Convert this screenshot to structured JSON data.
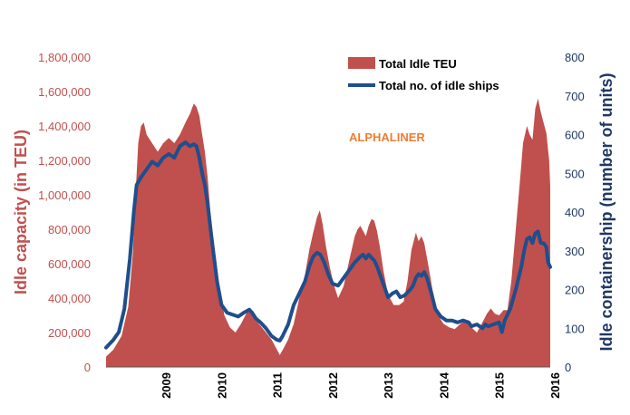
{
  "chart_data": {
    "type": "area+line",
    "ylabel_left": "Idle capacity (in TEU)",
    "ylabel_right": "Idle containership (number of units)",
    "annotation": "ALPHALINER",
    "legend_position": "top-right",
    "y_left": {
      "min": 0,
      "max": 1800000,
      "tick_labels": [
        "0",
        "200,000",
        "400,000",
        "600,000",
        "800,000",
        "1,000,000",
        "1,200,000",
        "1,400,000",
        "1,600,000",
        "1,800,000"
      ]
    },
    "y_right": {
      "min": 0,
      "max": 800,
      "tick_labels": [
        "0",
        "100",
        "200",
        "300",
        "400",
        "500",
        "600",
        "700",
        "800"
      ]
    },
    "x": {
      "min": 2008.42,
      "max": 2016.42,
      "tick_labels": [
        "2009",
        "2010",
        "2011",
        "2012",
        "2013",
        "2014",
        "2015",
        "2016"
      ]
    },
    "series": [
      {
        "name": "Total Idle TEU",
        "kind": "area",
        "axis": "left",
        "color": "#C0504D",
        "points": [
          [
            2008.42,
            60000
          ],
          [
            2008.55,
            100000
          ],
          [
            2008.7,
            180000
          ],
          [
            2008.82,
            350000
          ],
          [
            2008.9,
            650000
          ],
          [
            2008.95,
            1000000
          ],
          [
            2009.0,
            1300000
          ],
          [
            2009.05,
            1400000
          ],
          [
            2009.1,
            1420000
          ],
          [
            2009.15,
            1350000
          ],
          [
            2009.25,
            1300000
          ],
          [
            2009.35,
            1250000
          ],
          [
            2009.45,
            1300000
          ],
          [
            2009.55,
            1330000
          ],
          [
            2009.65,
            1300000
          ],
          [
            2009.75,
            1350000
          ],
          [
            2009.85,
            1420000
          ],
          [
            2009.93,
            1470000
          ],
          [
            2010.0,
            1530000
          ],
          [
            2010.05,
            1510000
          ],
          [
            2010.1,
            1460000
          ],
          [
            2010.15,
            1350000
          ],
          [
            2010.2,
            1250000
          ],
          [
            2010.25,
            1100000
          ],
          [
            2010.3,
            900000
          ],
          [
            2010.35,
            750000
          ],
          [
            2010.45,
            500000
          ],
          [
            2010.55,
            300000
          ],
          [
            2010.65,
            230000
          ],
          [
            2010.75,
            200000
          ],
          [
            2010.85,
            250000
          ],
          [
            2010.93,
            300000
          ],
          [
            2011.0,
            340000
          ],
          [
            2011.05,
            320000
          ],
          [
            2011.12,
            270000
          ],
          [
            2011.2,
            240000
          ],
          [
            2011.3,
            200000
          ],
          [
            2011.4,
            160000
          ],
          [
            2011.5,
            100000
          ],
          [
            2011.55,
            70000
          ],
          [
            2011.62,
            110000
          ],
          [
            2011.7,
            160000
          ],
          [
            2011.8,
            250000
          ],
          [
            2011.9,
            400000
          ],
          [
            2012.0,
            530000
          ],
          [
            2012.08,
            680000
          ],
          [
            2012.15,
            780000
          ],
          [
            2012.22,
            870000
          ],
          [
            2012.27,
            910000
          ],
          [
            2012.32,
            830000
          ],
          [
            2012.38,
            700000
          ],
          [
            2012.45,
            580000
          ],
          [
            2012.52,
            480000
          ],
          [
            2012.6,
            400000
          ],
          [
            2012.7,
            470000
          ],
          [
            2012.8,
            620000
          ],
          [
            2012.9,
            760000
          ],
          [
            2012.95,
            800000
          ],
          [
            2013.0,
            820000
          ],
          [
            2013.05,
            790000
          ],
          [
            2013.1,
            760000
          ],
          [
            2013.15,
            820000
          ],
          [
            2013.2,
            860000
          ],
          [
            2013.25,
            850000
          ],
          [
            2013.3,
            790000
          ],
          [
            2013.35,
            700000
          ],
          [
            2013.42,
            550000
          ],
          [
            2013.5,
            420000
          ],
          [
            2013.6,
            360000
          ],
          [
            2013.7,
            360000
          ],
          [
            2013.78,
            380000
          ],
          [
            2013.85,
            500000
          ],
          [
            2013.92,
            680000
          ],
          [
            2014.0,
            780000
          ],
          [
            2014.05,
            730000
          ],
          [
            2014.1,
            760000
          ],
          [
            2014.15,
            720000
          ],
          [
            2014.22,
            600000
          ],
          [
            2014.3,
            450000
          ],
          [
            2014.4,
            300000
          ],
          [
            2014.5,
            250000
          ],
          [
            2014.6,
            230000
          ],
          [
            2014.7,
            220000
          ],
          [
            2014.8,
            250000
          ],
          [
            2014.9,
            270000
          ],
          [
            2015.0,
            230000
          ],
          [
            2015.1,
            200000
          ],
          [
            2015.2,
            260000
          ],
          [
            2015.28,
            310000
          ],
          [
            2015.35,
            340000
          ],
          [
            2015.42,
            310000
          ],
          [
            2015.5,
            300000
          ],
          [
            2015.58,
            330000
          ],
          [
            2015.65,
            330000
          ],
          [
            2015.72,
            500000
          ],
          [
            2015.8,
            800000
          ],
          [
            2015.88,
            1100000
          ],
          [
            2015.93,
            1300000
          ],
          [
            2016.0,
            1400000
          ],
          [
            2016.05,
            1350000
          ],
          [
            2016.1,
            1320000
          ],
          [
            2016.15,
            1500000
          ],
          [
            2016.2,
            1560000
          ],
          [
            2016.25,
            1480000
          ],
          [
            2016.3,
            1420000
          ],
          [
            2016.35,
            1360000
          ],
          [
            2016.4,
            1200000
          ],
          [
            2016.42,
            1050000
          ]
        ]
      },
      {
        "name": "Total no. of idle ships",
        "kind": "line",
        "axis": "right",
        "color": "#1F4E8C",
        "points": [
          [
            2008.42,
            50
          ],
          [
            2008.55,
            70
          ],
          [
            2008.65,
            90
          ],
          [
            2008.75,
            150
          ],
          [
            2008.85,
            280
          ],
          [
            2008.92,
            400
          ],
          [
            2008.97,
            470
          ],
          [
            2009.05,
            490
          ],
          [
            2009.15,
            510
          ],
          [
            2009.25,
            530
          ],
          [
            2009.35,
            520
          ],
          [
            2009.45,
            540
          ],
          [
            2009.55,
            550
          ],
          [
            2009.65,
            540
          ],
          [
            2009.75,
            570
          ],
          [
            2009.85,
            580
          ],
          [
            2009.93,
            570
          ],
          [
            2010.0,
            575
          ],
          [
            2010.05,
            570
          ],
          [
            2010.1,
            540
          ],
          [
            2010.15,
            500
          ],
          [
            2010.2,
            470
          ],
          [
            2010.25,
            420
          ],
          [
            2010.3,
            360
          ],
          [
            2010.35,
            300
          ],
          [
            2010.42,
            220
          ],
          [
            2010.5,
            160
          ],
          [
            2010.6,
            140
          ],
          [
            2010.7,
            135
          ],
          [
            2010.8,
            130
          ],
          [
            2010.9,
            140
          ],
          [
            2011.0,
            148
          ],
          [
            2011.05,
            140
          ],
          [
            2011.12,
            125
          ],
          [
            2011.2,
            115
          ],
          [
            2011.3,
            100
          ],
          [
            2011.4,
            80
          ],
          [
            2011.5,
            70
          ],
          [
            2011.55,
            68
          ],
          [
            2011.6,
            80
          ],
          [
            2011.7,
            110
          ],
          [
            2011.8,
            160
          ],
          [
            2011.9,
            190
          ],
          [
            2012.0,
            220
          ],
          [
            2012.08,
            260
          ],
          [
            2012.15,
            285
          ],
          [
            2012.22,
            295
          ],
          [
            2012.28,
            290
          ],
          [
            2012.35,
            270
          ],
          [
            2012.42,
            240
          ],
          [
            2012.5,
            215
          ],
          [
            2012.6,
            210
          ],
          [
            2012.7,
            230
          ],
          [
            2012.8,
            250
          ],
          [
            2012.9,
            270
          ],
          [
            2013.0,
            285
          ],
          [
            2013.05,
            290
          ],
          [
            2013.1,
            280
          ],
          [
            2013.15,
            290
          ],
          [
            2013.2,
            282
          ],
          [
            2013.25,
            275
          ],
          [
            2013.3,
            260
          ],
          [
            2013.4,
            220
          ],
          [
            2013.5,
            180
          ],
          [
            2013.58,
            190
          ],
          [
            2013.65,
            195
          ],
          [
            2013.72,
            180
          ],
          [
            2013.8,
            185
          ],
          [
            2013.9,
            200
          ],
          [
            2013.95,
            210
          ],
          [
            2014.0,
            230
          ],
          [
            2014.05,
            240
          ],
          [
            2014.1,
            235
          ],
          [
            2014.15,
            245
          ],
          [
            2014.2,
            230
          ],
          [
            2014.28,
            190
          ],
          [
            2014.35,
            150
          ],
          [
            2014.45,
            130
          ],
          [
            2014.55,
            120
          ],
          [
            2014.65,
            120
          ],
          [
            2014.75,
            115
          ],
          [
            2014.85,
            120
          ],
          [
            2014.95,
            115
          ],
          [
            2015.0,
            105
          ],
          [
            2015.1,
            110
          ],
          [
            2015.2,
            100
          ],
          [
            2015.25,
            110
          ],
          [
            2015.3,
            105
          ],
          [
            2015.4,
            110
          ],
          [
            2015.5,
            115
          ],
          [
            2015.55,
            90
          ],
          [
            2015.6,
            120
          ],
          [
            2015.7,
            150
          ],
          [
            2015.8,
            200
          ],
          [
            2015.9,
            260
          ],
          [
            2015.95,
            300
          ],
          [
            2016.0,
            330
          ],
          [
            2016.05,
            335
          ],
          [
            2016.1,
            320
          ],
          [
            2016.15,
            345
          ],
          [
            2016.2,
            350
          ],
          [
            2016.25,
            320
          ],
          [
            2016.3,
            320
          ],
          [
            2016.35,
            310
          ],
          [
            2016.38,
            270
          ],
          [
            2016.42,
            258
          ]
        ]
      }
    ]
  }
}
